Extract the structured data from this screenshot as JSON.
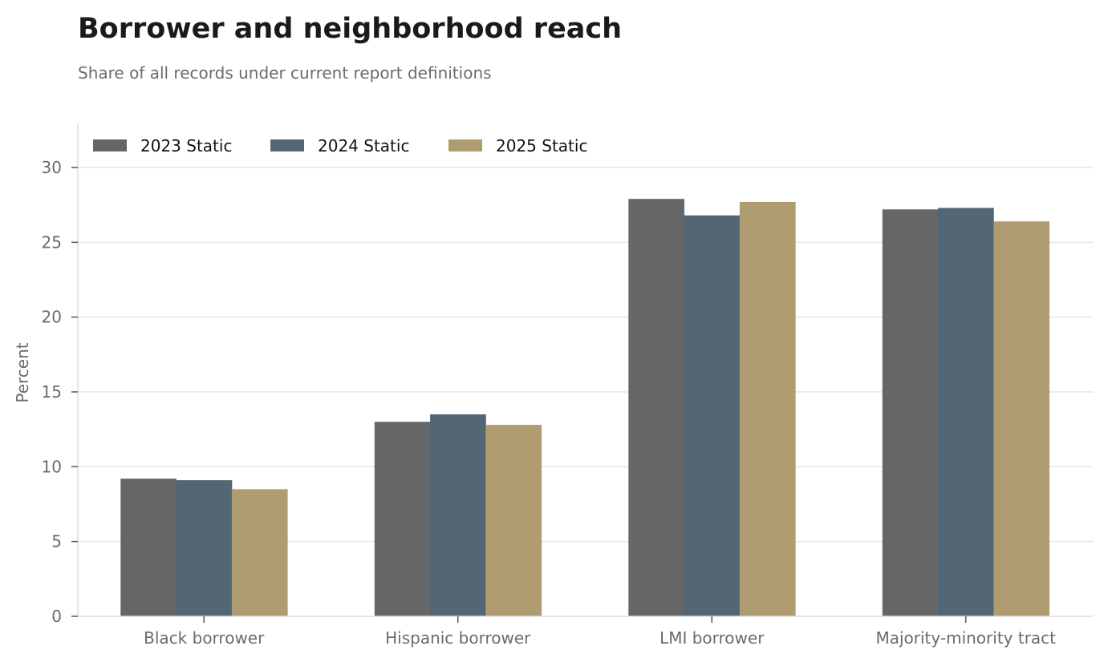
{
  "title": "Borrower and neighborhood reach",
  "subtitle": "Share of all records under current report definitions",
  "chart_data": {
    "type": "bar",
    "categories": [
      "Black borrower",
      "Hispanic borrower",
      "LMI borrower",
      "Majority-minority tract"
    ],
    "series": [
      {
        "name": "2023 Static",
        "color": "#666666",
        "values": [
          9.2,
          13.0,
          27.9,
          27.2
        ]
      },
      {
        "name": "2024 Static",
        "color": "#526676",
        "values": [
          9.1,
          13.5,
          26.8,
          27.3
        ]
      },
      {
        "name": "2025 Static",
        "color": "#af9d71",
        "values": [
          8.5,
          12.8,
          27.7,
          26.4
        ]
      }
    ],
    "xlabel": "",
    "ylabel": "Percent",
    "ylim": [
      0,
      33
    ],
    "yticks": [
      0,
      5,
      10,
      15,
      20,
      25,
      30
    ],
    "grid": "horizontal",
    "legend": "top-left"
  }
}
